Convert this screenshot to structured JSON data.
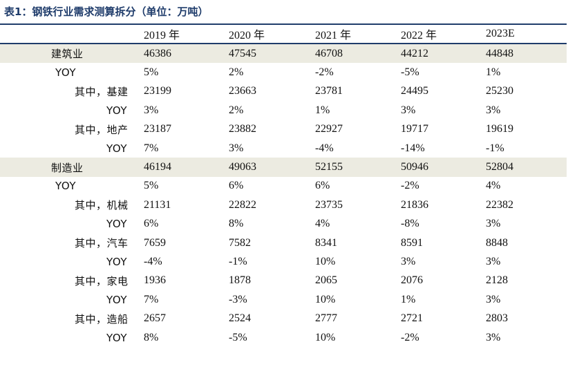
{
  "title": "表1：钢铁行业需求测算拆分（单位：万吨）",
  "header": [
    "",
    "2019 年",
    "2020 年",
    "2021 年",
    "2022 年",
    "2023E"
  ],
  "rows": [
    {
      "label": "建筑业",
      "level": 0,
      "shaded": true,
      "values": [
        "46386",
        "47545",
        "46708",
        "44212",
        "44848"
      ]
    },
    {
      "label": "YOY",
      "level": 1,
      "shaded": false,
      "values": [
        "5%",
        "2%",
        "-2%",
        "-5%",
        "1%"
      ]
    },
    {
      "label": "其中，基建",
      "level": 2,
      "shaded": false,
      "values": [
        "23199",
        "23663",
        "23781",
        "24495",
        "25230"
      ]
    },
    {
      "label": "YOY",
      "level": 3,
      "shaded": false,
      "values": [
        "3%",
        "2%",
        "1%",
        "3%",
        "3%"
      ]
    },
    {
      "label": "其中，地产",
      "level": 2,
      "shaded": false,
      "values": [
        "23187",
        "23882",
        "22927",
        "19717",
        "19619"
      ]
    },
    {
      "label": "YOY",
      "level": 3,
      "shaded": false,
      "values": [
        "7%",
        "3%",
        "-4%",
        "-14%",
        "-1%"
      ]
    },
    {
      "label": "制造业",
      "level": 0,
      "shaded": true,
      "values": [
        "46194",
        "49063",
        "52155",
        "50946",
        "52804"
      ]
    },
    {
      "label": "YOY",
      "level": 1,
      "shaded": false,
      "values": [
        "5%",
        "6%",
        "6%",
        "-2%",
        "4%"
      ]
    },
    {
      "label": "其中，机械",
      "level": 2,
      "shaded": false,
      "values": [
        "21131",
        "22822",
        "23735",
        "21836",
        "22382"
      ]
    },
    {
      "label": "YOY",
      "level": 3,
      "shaded": false,
      "values": [
        "6%",
        "8%",
        "4%",
        "-8%",
        "3%"
      ]
    },
    {
      "label": "其中，汽车",
      "level": 2,
      "shaded": false,
      "values": [
        "7659",
        "7582",
        "8341",
        "8591",
        "8848"
      ]
    },
    {
      "label": "YOY",
      "level": 3,
      "shaded": false,
      "values": [
        "-4%",
        "-1%",
        "10%",
        "3%",
        "3%"
      ]
    },
    {
      "label": "其中，家电",
      "level": 2,
      "shaded": false,
      "values": [
        "1936",
        "1878",
        "2065",
        "2076",
        "2128"
      ]
    },
    {
      "label": "YOY",
      "level": 3,
      "shaded": false,
      "values": [
        "7%",
        "-3%",
        "10%",
        "1%",
        "3%"
      ]
    },
    {
      "label": "其中，造船",
      "level": 2,
      "shaded": false,
      "values": [
        "2657",
        "2524",
        "2777",
        "2721",
        "2803"
      ]
    },
    {
      "label": "YOY",
      "level": 3,
      "shaded": false,
      "values": [
        "8%",
        "-5%",
        "10%",
        "-2%",
        "3%"
      ]
    }
  ]
}
